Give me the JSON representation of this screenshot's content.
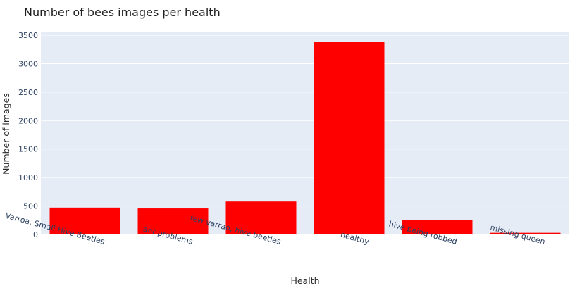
{
  "chart_data": {
    "type": "bar",
    "title": "Number of bees images per health",
    "xlabel": "Health",
    "ylabel": "Number of images",
    "categories": [
      "Varroa, Small Hive Beetles",
      "ant problems",
      "few varrao, hive beetles",
      "healthy",
      "hive being robbed",
      "missing queen"
    ],
    "values": [
      472,
      457,
      579,
      3384,
      251,
      29
    ],
    "ylim": [
      0,
      3550
    ],
    "yticks": [
      0,
      500,
      1000,
      1500,
      2000,
      2500,
      3000,
      3500
    ],
    "grid": true,
    "bar_color": "#ff0000",
    "plot_background": "#e5ecf6"
  }
}
